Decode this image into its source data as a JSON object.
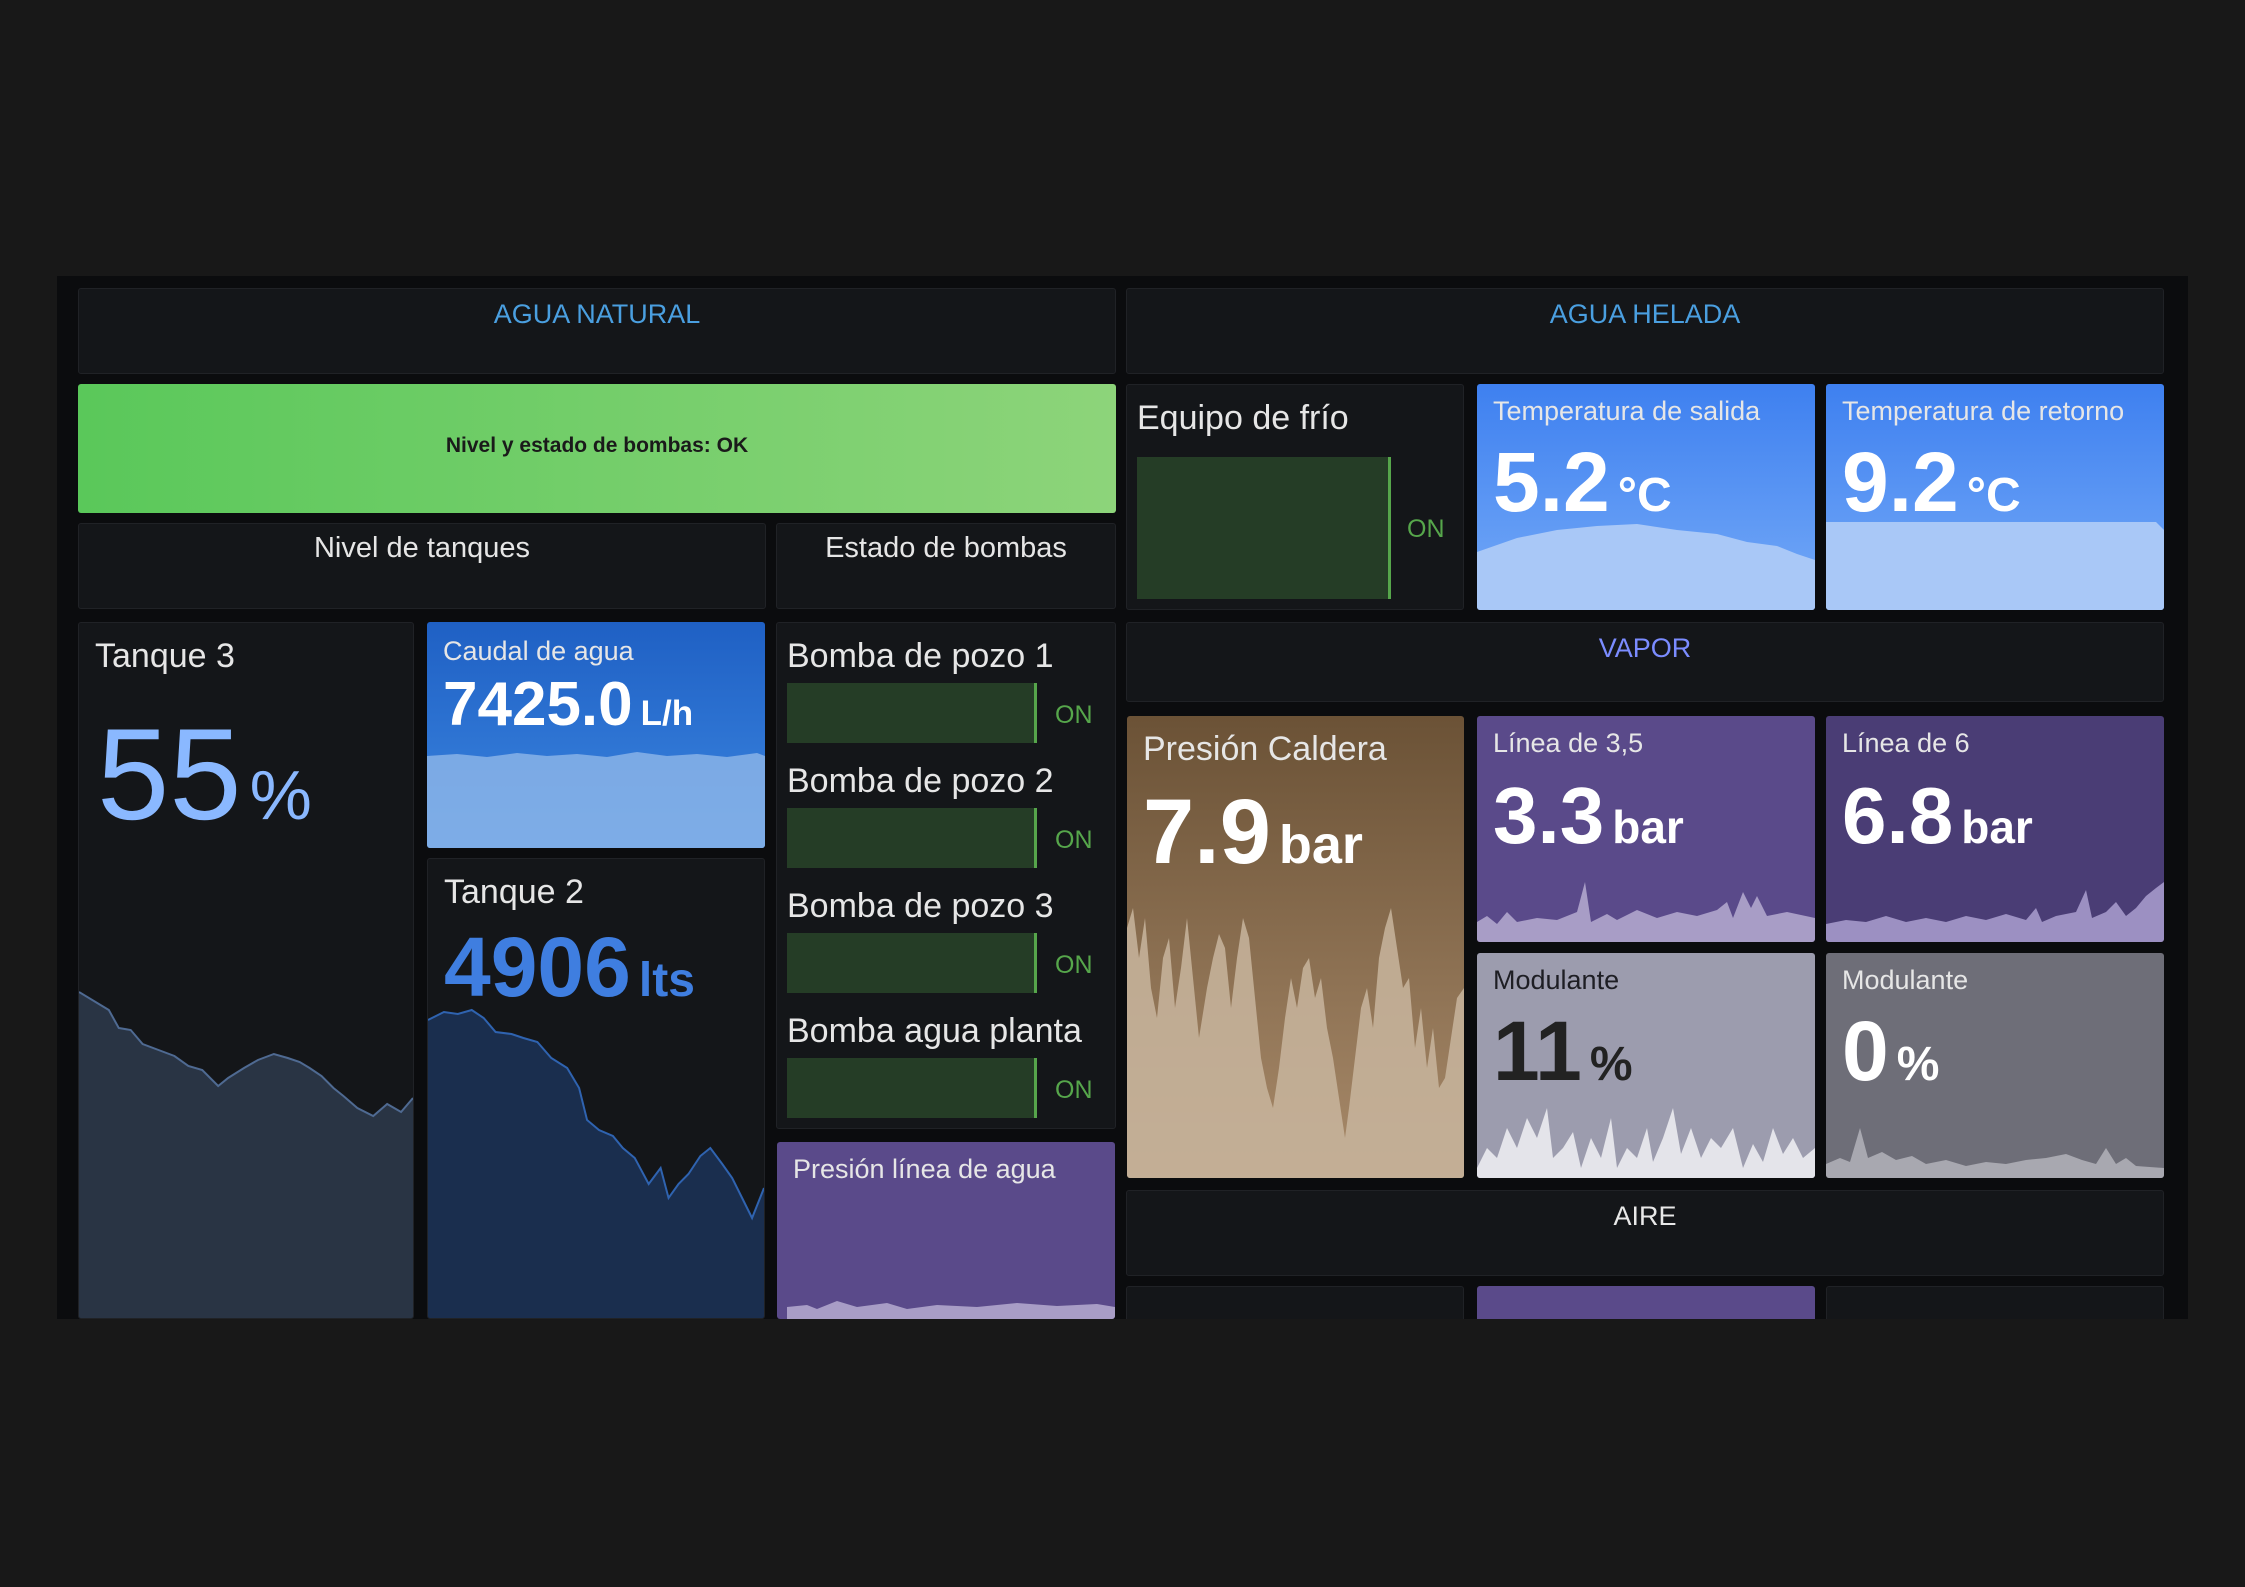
{
  "rows": {
    "agua_natural": "AGUA NATURAL",
    "agua_helada": "AGUA HELADA",
    "vapor": "VAPOR",
    "aire": "AIRE"
  },
  "status_banner": {
    "text": "Nivel y estado de bombas: OK",
    "color": "#73bf69"
  },
  "sections": {
    "tanques": "Nivel de tanques",
    "bombas": "Estado de bombas"
  },
  "tanque3": {
    "title": "Tanque 3",
    "value": "55",
    "unit": "%"
  },
  "caudal": {
    "title": "Caudal de agua",
    "value": "7425.0",
    "unit": "L/h"
  },
  "tanque2": {
    "title": "Tanque 2",
    "value": "4906",
    "unit": "lts"
  },
  "bombas": [
    {
      "label": "Bomba de pozo 1",
      "state": "ON"
    },
    {
      "label": "Bomba de pozo 2",
      "state": "ON"
    },
    {
      "label": "Bomba de pozo 3",
      "state": "ON"
    },
    {
      "label": "Bomba agua planta",
      "state": "ON"
    }
  ],
  "presion_linea_agua": {
    "title": "Presión línea de agua"
  },
  "equipo_frio": {
    "title": "Equipo de frío",
    "state": "ON"
  },
  "temp_salida": {
    "title": "Temperatura de salida",
    "value": "5.2",
    "unit": "°C"
  },
  "temp_retorno": {
    "title": "Temperatura de retorno",
    "value": "9.2",
    "unit": "°C"
  },
  "presion_caldera": {
    "title": "Presión Caldera",
    "value": "7.9",
    "unit": "bar"
  },
  "linea35": {
    "title": "Línea de 3,5",
    "value": "3.3",
    "unit": "bar"
  },
  "linea6": {
    "title": "Línea de 6",
    "value": "6.8",
    "unit": "bar"
  },
  "modulante1": {
    "title": "Modulante",
    "value": "11",
    "unit": "%"
  },
  "modulante2": {
    "title": "Modulante",
    "value": "0",
    "unit": "%"
  },
  "colors": {
    "green": "#73bf69",
    "blue": "#3274d9",
    "light_blue": "#5794f2",
    "purple": "#5a4a8a",
    "brown": "#6b5236",
    "grey": "#6e6e78"
  }
}
